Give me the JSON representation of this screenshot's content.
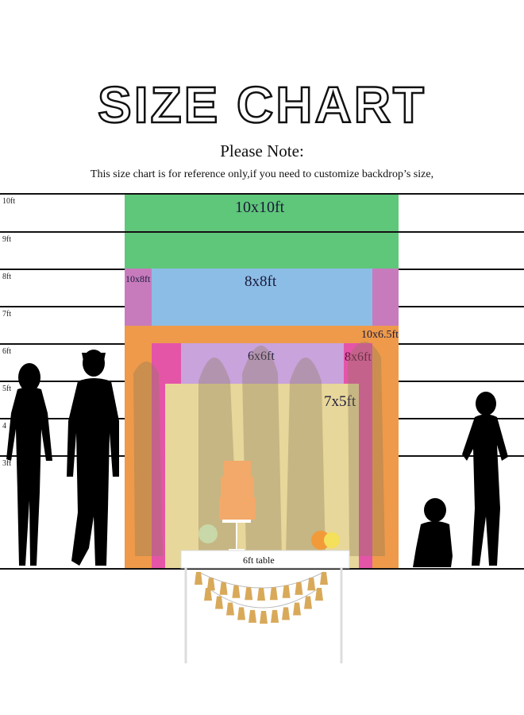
{
  "title": "SIZE CHART",
  "note_heading": "Please Note:",
  "note_body": "This size chart is for reference only,if you need to customize backdrop’s size,",
  "height_ticks": [
    "10ft",
    "9ft",
    "8ft",
    "7ft",
    "6ft",
    "5ft",
    "4",
    "3ft"
  ],
  "backdrops": [
    {
      "label": "10x10ft",
      "color": "#5fc77a"
    },
    {
      "label": "10x8ft",
      "color": "#c77bbd"
    },
    {
      "label": "8x8ft",
      "color": "#8cbde6"
    },
    {
      "label": "10x6.5ft",
      "color": "#ee9a4a"
    },
    {
      "label": "8x6ft",
      "color": "#e455a8"
    },
    {
      "label": "6x6ft",
      "color": "#c9a3dc"
    },
    {
      "label": "7x5ft",
      "color": "#e8d79a"
    }
  ],
  "table_label": "6ft table"
}
